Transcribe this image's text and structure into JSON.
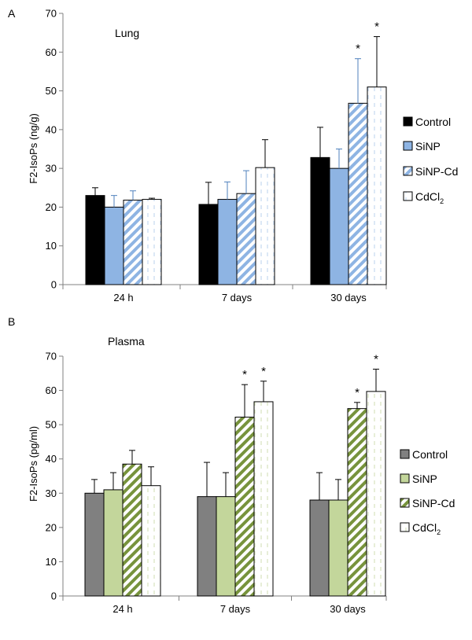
{
  "chart_data": [
    {
      "panel": "A",
      "type": "bar",
      "inset_label": "Lung",
      "ylabel": "F2-IsoPs (ng/g)",
      "ylim": [
        0,
        70
      ],
      "yticks": [
        0,
        10,
        20,
        30,
        40,
        50,
        60,
        70
      ],
      "categories": [
        "24 h",
        "7 days",
        "30 days"
      ],
      "series": [
        {
          "name": "Control",
          "fill": "solid",
          "color": "#000000",
          "values": [
            23,
            20.7,
            32.8
          ],
          "errors": [
            2,
            5.7,
            7.8
          ],
          "significant": [
            false,
            false,
            false
          ]
        },
        {
          "name": "SiNP",
          "fill": "solid",
          "color": "#8eb4e3",
          "values": [
            20,
            22,
            30
          ],
          "errors": [
            3,
            4.5,
            5
          ],
          "significant": [
            false,
            false,
            false
          ]
        },
        {
          "name": "SiNP-Cd",
          "fill": "hatch",
          "color": "#8eb4e3",
          "values": [
            21.8,
            23.5,
            46.8
          ],
          "errors": [
            2.4,
            5.9,
            11.5
          ],
          "significant": [
            false,
            false,
            true
          ]
        },
        {
          "name": "CdCl",
          "name_subscript": "2",
          "fill": "dash",
          "color": "#c6d9f1",
          "values": [
            22,
            30.2,
            51
          ],
          "errors": [
            0.3,
            7.2,
            13
          ],
          "significant": [
            false,
            false,
            true
          ]
        }
      ],
      "significance_marker": "*"
    },
    {
      "panel": "B",
      "type": "bar",
      "inset_label": "Plasma",
      "ylabel": "F2-IsoPs (pg/ml)",
      "ylim": [
        0,
        70
      ],
      "yticks": [
        0,
        10,
        20,
        30,
        40,
        50,
        60,
        70
      ],
      "categories": [
        "24 h",
        "7 days",
        "30 days"
      ],
      "series": [
        {
          "name": "Control",
          "fill": "solid",
          "color": "#808080",
          "values": [
            30,
            29,
            28
          ],
          "errors": [
            4,
            10,
            8
          ],
          "significant": [
            false,
            false,
            false
          ]
        },
        {
          "name": "SiNP",
          "fill": "solid",
          "color": "#c3d69b",
          "values": [
            31,
            29,
            28
          ],
          "errors": [
            5,
            7,
            6
          ],
          "significant": [
            false,
            false,
            false
          ]
        },
        {
          "name": "SiNP-Cd",
          "fill": "hatch",
          "color": "#77933c",
          "values": [
            38.5,
            52.2,
            54.7
          ],
          "errors": [
            4,
            9.5,
            1.8
          ],
          "significant": [
            false,
            true,
            true
          ]
        },
        {
          "name": "CdCl",
          "name_subscript": "2",
          "fill": "dash",
          "color": "#d7e4bd",
          "values": [
            32.2,
            56.7,
            59.7
          ],
          "errors": [
            5.5,
            6,
            6.5
          ],
          "significant": [
            false,
            true,
            true
          ]
        }
      ],
      "significance_marker": "*"
    }
  ]
}
